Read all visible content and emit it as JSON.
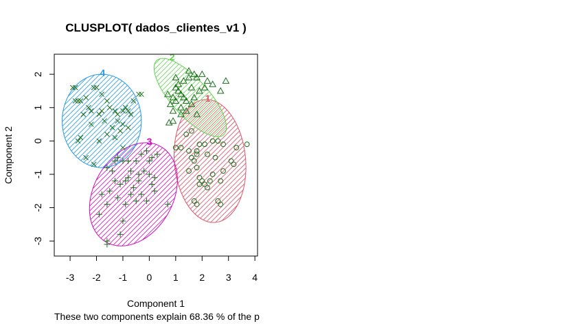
{
  "chart_data": {
    "type": "scatter",
    "title": "CLUSPLOT( dados_clientes_v1 )",
    "xlabel": "Component 1",
    "ylabel": "Component 2",
    "subtitle": "These two components explain 68.36 % of the p",
    "xlim": [
      -3.6,
      4.1
    ],
    "ylim": [
      -3.45,
      2.6
    ],
    "xticks": [
      -3,
      -2,
      -1,
      0,
      1,
      2,
      3,
      4
    ],
    "yticks": [
      -3,
      -2,
      -1,
      0,
      1,
      2
    ],
    "point_color": "#1a6e1a",
    "clusters": [
      {
        "label": "1",
        "color": "#df536b",
        "marker": "circle",
        "ellipse": {
          "cx": 2.3,
          "cy": -0.6,
          "rx": 1.35,
          "ry": 1.85,
          "angle_deg": 5
        },
        "points": [
          [
            1.0,
            -0.2
          ],
          [
            1.2,
            -0.2
          ],
          [
            1.4,
            0.2
          ],
          [
            1.6,
            0.3
          ],
          [
            1.8,
            -0.3
          ],
          [
            1.9,
            -0.1
          ],
          [
            2.1,
            -0.1
          ],
          [
            2.4,
            0.0
          ],
          [
            2.6,
            0.0
          ],
          [
            2.8,
            -0.1
          ],
          [
            3.3,
            -0.2
          ],
          [
            3.7,
            -0.1
          ],
          [
            1.5,
            -0.9
          ],
          [
            1.7,
            -0.6
          ],
          [
            1.8,
            -0.8
          ],
          [
            1.9,
            -1.1
          ],
          [
            2.1,
            -1.3
          ],
          [
            2.3,
            -1.2
          ],
          [
            2.4,
            -1.0
          ],
          [
            2.7,
            -1.2
          ],
          [
            2.8,
            -0.9
          ],
          [
            3.1,
            -0.6
          ],
          [
            3.2,
            -0.7
          ],
          [
            2.6,
            -1.8
          ],
          [
            2.7,
            -1.9
          ],
          [
            1.7,
            -1.8
          ],
          [
            1.8,
            -1.9
          ],
          [
            2.0,
            -1.2
          ],
          [
            1.6,
            -0.5
          ],
          [
            2.2,
            -0.4
          ],
          [
            2.5,
            -0.5
          ],
          [
            1.8,
            -0.4
          ],
          [
            1.9,
            -1.3
          ],
          [
            2.2,
            -1.4
          ],
          [
            1.5,
            -0.3
          ]
        ]
      },
      {
        "label": "2",
        "color": "#61d04f",
        "marker": "triangle",
        "ellipse": {
          "cx": 1.55,
          "cy": 1.3,
          "rx": 0.7,
          "ry": 1.5,
          "angle_deg": 42
        },
        "points": [
          [
            0.7,
            1.4
          ],
          [
            0.8,
            1.1
          ],
          [
            0.9,
            1.3
          ],
          [
            1.0,
            1.6
          ],
          [
            1.0,
            1.9
          ],
          [
            1.1,
            1.7
          ],
          [
            1.2,
            1.4
          ],
          [
            1.3,
            1.8
          ],
          [
            1.4,
            1.2
          ],
          [
            1.5,
            1.9
          ],
          [
            1.6,
            1.6
          ],
          [
            1.7,
            1.3
          ],
          [
            1.8,
            1.9
          ],
          [
            1.9,
            1.5
          ],
          [
            2.0,
            2.0
          ],
          [
            2.1,
            1.6
          ],
          [
            2.2,
            1.8
          ],
          [
            2.4,
            1.7
          ],
          [
            2.7,
            1.5
          ],
          [
            2.9,
            1.8
          ],
          [
            0.9,
            0.9
          ],
          [
            1.2,
            1.0
          ],
          [
            1.4,
            0.9
          ],
          [
            1.6,
            1.1
          ],
          [
            1.8,
            0.8
          ],
          [
            0.75,
            0.55
          ],
          [
            0.9,
            0.6
          ],
          [
            1.1,
            1.5
          ],
          [
            1.5,
            2.1
          ],
          [
            1.3,
            1.3
          ],
          [
            1.2,
            0.8
          ],
          [
            1.7,
            2.0
          ],
          [
            1.0,
            1.2
          ]
        ]
      },
      {
        "label": "3",
        "color": "#cd0bbc",
        "marker": "plus",
        "ellipse": {
          "cx": -0.6,
          "cy": -1.6,
          "rx": 1.5,
          "ry": 1.65,
          "angle_deg": -30
        },
        "points": [
          [
            -0.3,
            -0.4
          ],
          [
            -0.1,
            -0.3
          ],
          [
            0.1,
            -0.5
          ],
          [
            0.3,
            -0.4
          ],
          [
            -0.5,
            -0.6
          ],
          [
            -0.8,
            -0.6
          ],
          [
            -1.0,
            -0.6
          ],
          [
            -1.3,
            -0.6
          ],
          [
            -1.6,
            -0.8
          ],
          [
            -0.2,
            -0.9
          ],
          [
            0.0,
            -1.0
          ],
          [
            0.2,
            -1.1
          ],
          [
            -0.4,
            -1.2
          ],
          [
            -0.6,
            -1.4
          ],
          [
            -0.9,
            -1.2
          ],
          [
            -1.1,
            -1.3
          ],
          [
            -1.3,
            -1.2
          ],
          [
            -1.5,
            -1.5
          ],
          [
            -0.7,
            -1.6
          ],
          [
            -0.3,
            -1.6
          ],
          [
            0.2,
            -1.5
          ],
          [
            -0.1,
            -1.8
          ],
          [
            -0.5,
            -1.8
          ],
          [
            -0.9,
            -1.9
          ],
          [
            -1.2,
            -1.7
          ],
          [
            -1.6,
            -1.9
          ],
          [
            -1.8,
            -1.6
          ],
          [
            -1.9,
            -2.2
          ],
          [
            -1.0,
            -2.4
          ],
          [
            -1.1,
            -2.8
          ],
          [
            -1.6,
            -3.0
          ],
          [
            -1.6,
            -3.1
          ],
          [
            0.7,
            -1.9
          ],
          [
            0.1,
            -1.3
          ],
          [
            -0.4,
            -1.0
          ],
          [
            -0.7,
            -0.9
          ],
          [
            -1.4,
            -0.9
          ],
          [
            -1.2,
            -0.5
          ],
          [
            -0.8,
            -1.1
          ],
          [
            0.0,
            -0.6
          ]
        ]
      },
      {
        "label": "4",
        "color": "#2297e6",
        "marker": "cross",
        "ellipse": {
          "cx": -1.8,
          "cy": 0.6,
          "rx": 1.5,
          "ry": 1.4,
          "angle_deg": 0
        },
        "points": [
          [
            -2.8,
            1.6
          ],
          [
            -2.7,
            1.2
          ],
          [
            -2.6,
            1.2
          ],
          [
            -2.4,
            1.3
          ],
          [
            -2.3,
            1.0
          ],
          [
            -2.1,
            1.6
          ],
          [
            -2.0,
            1.6
          ],
          [
            -1.8,
            1.4
          ],
          [
            -1.6,
            1.2
          ],
          [
            -1.5,
            1.0
          ],
          [
            -1.3,
            0.9
          ],
          [
            -1.2,
            0.8
          ],
          [
            -1.0,
            0.9
          ],
          [
            -0.8,
            0.9
          ],
          [
            -0.7,
            0.8
          ],
          [
            -0.6,
            1.2
          ],
          [
            -0.4,
            1.4
          ],
          [
            -0.3,
            1.4
          ],
          [
            -2.5,
            0.8
          ],
          [
            -2.2,
            0.5
          ],
          [
            -1.9,
            0.8
          ],
          [
            -1.7,
            0.6
          ],
          [
            -1.4,
            0.4
          ],
          [
            -1.2,
            0.6
          ],
          [
            -1.0,
            0.5
          ],
          [
            -0.8,
            0.4
          ],
          [
            -2.7,
            0.0
          ],
          [
            -2.4,
            -0.5
          ],
          [
            -2.1,
            -0.7
          ],
          [
            -1.9,
            0.0
          ],
          [
            -1.6,
            0.2
          ],
          [
            -1.3,
            0.1
          ],
          [
            -1.0,
            -0.2
          ],
          [
            -2.9,
            1.6
          ],
          [
            -2.6,
            0.1
          ],
          [
            -2.2,
            0.9
          ],
          [
            -0.9,
            1.0
          ],
          [
            -2.8,
            1.2
          ],
          [
            -1.8,
            0.9
          ],
          [
            -1.1,
            0.3
          ]
        ]
      }
    ]
  }
}
